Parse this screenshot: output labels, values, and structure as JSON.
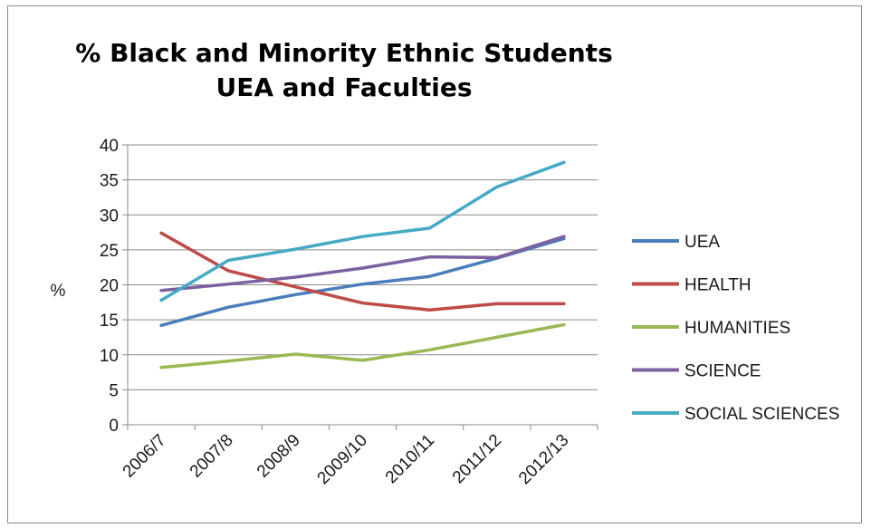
{
  "chart_data": {
    "type": "line",
    "title": "% Black and Minority Ethnic Students",
    "subtitle": "UEA and Faculties",
    "xlabel": "",
    "ylabel": "%",
    "categories": [
      "2006/7",
      "2007/8",
      "2008/9",
      "2009/10",
      "2010/11",
      "2011/12",
      "2012/13"
    ],
    "ylim": [
      0,
      40
    ],
    "yticks": [
      0,
      5,
      10,
      15,
      20,
      25,
      30,
      35,
      40
    ],
    "grid": true,
    "legend_position": "right",
    "series": [
      {
        "name": "UEA",
        "color": "#4a7ebb",
        "values": [
          14.2,
          16.8,
          18.6,
          20.1,
          21.2,
          23.8,
          26.6
        ]
      },
      {
        "name": "HEALTH",
        "color": "#be4b48",
        "values": [
          27.4,
          22.0,
          19.7,
          17.4,
          16.4,
          17.3,
          17.3
        ]
      },
      {
        "name": "HUMANITIES",
        "color": "#98b954",
        "values": [
          8.2,
          9.1,
          10.1,
          9.2,
          10.7,
          12.5,
          14.3
        ]
      },
      {
        "name": "SCIENCE",
        "color": "#7d60a0",
        "values": [
          19.2,
          20.1,
          21.1,
          22.4,
          24.0,
          23.9,
          26.9
        ]
      },
      {
        "name": "SOCIAL SCIENCES",
        "color": "#46aac5",
        "values": [
          17.8,
          23.5,
          25.1,
          26.9,
          28.1,
          34.0,
          37.5
        ]
      }
    ]
  }
}
